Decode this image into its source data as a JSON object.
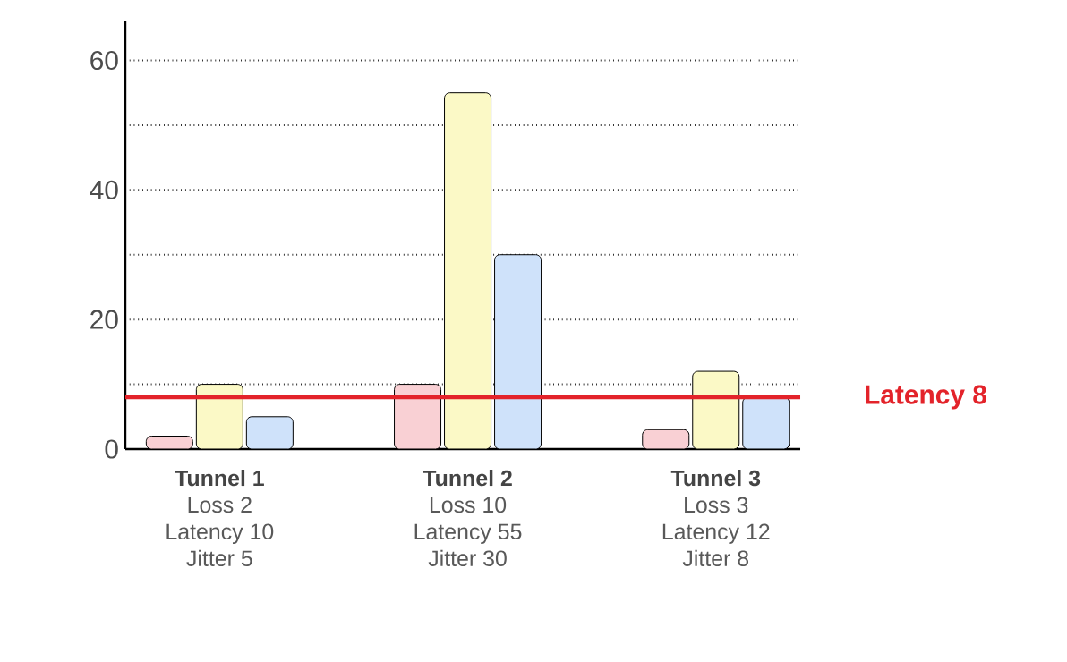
{
  "chart_data": {
    "type": "bar",
    "categories": [
      "Tunnel 1",
      "Tunnel 2",
      "Tunnel 3"
    ],
    "series": [
      {
        "color": "#f9d0d4",
        "values": [
          2,
          10,
          3
        ],
        "value_labels": [
          "Loss 2",
          "Loss 10",
          "Loss 3"
        ]
      },
      {
        "color": "#fbf9c6",
        "values": [
          10,
          55,
          12
        ],
        "value_labels": [
          "Latency 10",
          "Latency 55",
          "Latency 12"
        ]
      },
      {
        "color": "#cfe2fa",
        "values": [
          5,
          30,
          8
        ],
        "value_labels": [
          "Jitter 5",
          "Jitter 30",
          "Jitter 8"
        ]
      }
    ],
    "ylim": [
      0,
      66
    ],
    "yticks": [
      0,
      {
        "value": 10,
        "label": null
      },
      20,
      {
        "value": 30,
        "label": null
      },
      40,
      {
        "value": 50,
        "label": null
      },
      60
    ],
    "grid": "y",
    "ref_lines": [
      {
        "axis": "y",
        "value": 8,
        "label": "Latency 8",
        "color": "#e3232a",
        "line_style": "solid"
      }
    ]
  }
}
